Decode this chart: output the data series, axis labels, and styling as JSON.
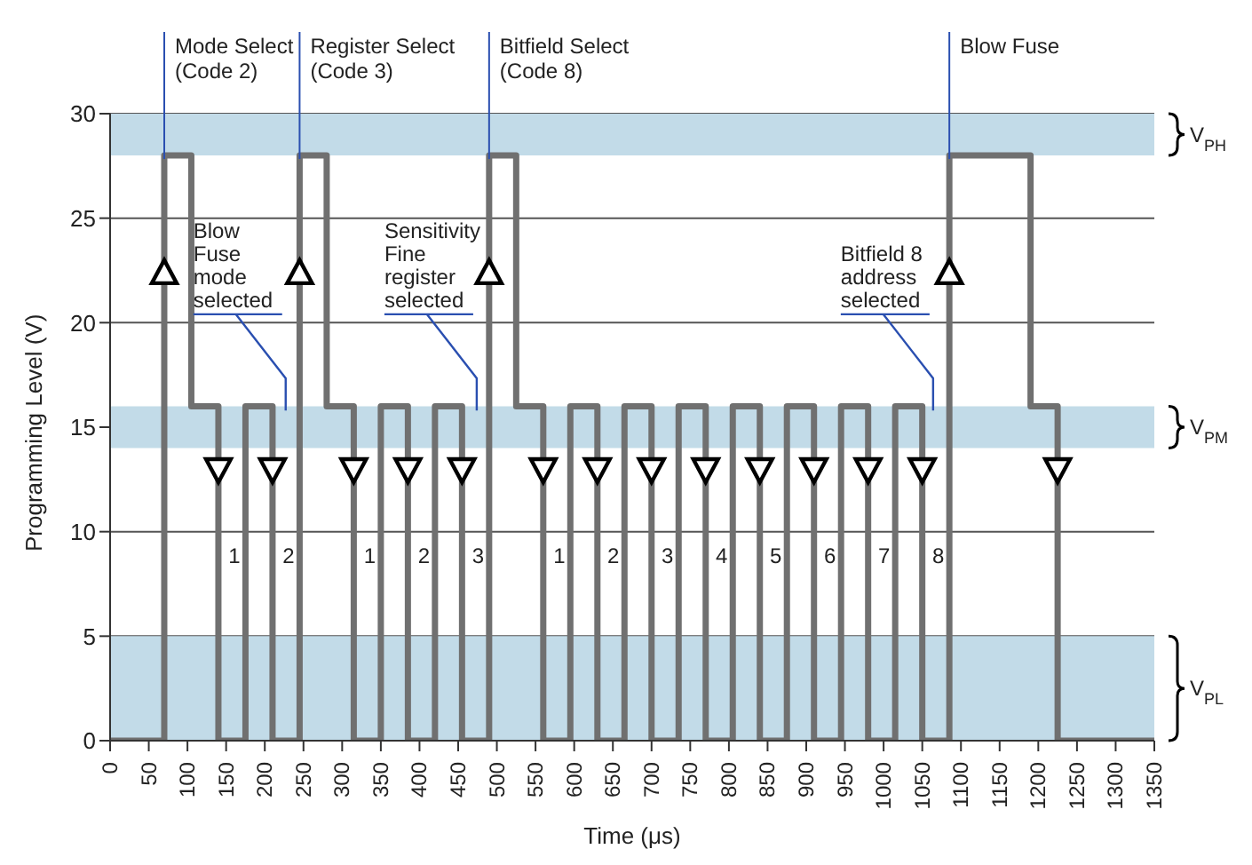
{
  "chart_data": {
    "type": "step",
    "xlabel": "Time (μs)",
    "ylabel": "Programming Level (V)",
    "xlim": [
      0,
      1350
    ],
    "xticks": [
      0,
      50,
      100,
      150,
      200,
      250,
      300,
      350,
      400,
      450,
      500,
      550,
      600,
      650,
      700,
      750,
      800,
      850,
      900,
      950,
      1000,
      1050,
      1100,
      1150,
      1200,
      1250,
      1300,
      1350
    ],
    "ylim": [
      0,
      30
    ],
    "yticks": [
      0,
      5,
      10,
      15,
      20,
      25,
      30
    ],
    "grid": "y",
    "series": [
      {
        "color": "#707070",
        "x": [
          0,
          70,
          105,
          140,
          175,
          210,
          245,
          280,
          315,
          350,
          385,
          420,
          455,
          490,
          525,
          560,
          595,
          630,
          665,
          700,
          735,
          770,
          805,
          840,
          875,
          910,
          945,
          980,
          1015,
          1050,
          1085,
          1190,
          1225,
          1350
        ],
        "values": [
          0,
          28,
          16,
          0,
          16,
          0,
          28,
          16,
          0,
          16,
          0,
          16,
          0,
          28,
          16,
          0,
          16,
          0,
          16,
          0,
          16,
          0,
          16,
          0,
          16,
          0,
          16,
          0,
          16,
          0,
          28,
          16,
          0,
          0
        ]
      }
    ],
    "bands": [
      {
        "axis": "y",
        "from": 28,
        "to": 30,
        "label": "V$_{PH}$",
        "color": "#c2dbe8"
      },
      {
        "axis": "y",
        "from": 14,
        "to": 16,
        "label": "V$_{PM}$",
        "color": "#c2dbe8"
      },
      {
        "axis": "y",
        "from": 0,
        "to": 5,
        "label": "V$_{PL}$",
        "color": "#c2dbe8"
      }
    ],
    "annotations": [
      {
        "text": "Mode Select\n(Code 2)",
        "x": 70,
        "y": 30
      },
      {
        "text": "Register Select\n(Code 3)",
        "x": 245,
        "y": 30
      },
      {
        "text": "Bitfield Select\n(Code 8)",
        "x": 490,
        "y": 30
      },
      {
        "text": "Blow Fuse",
        "x": 1085,
        "y": 30
      },
      {
        "text": "Blow\nFuse\nmode\nselected",
        "x": 227,
        "y": 15.8
      },
      {
        "text": "Sensitivity\nFine\nregister\nselected",
        "x": 474,
        "y": 15.8
      },
      {
        "text": "Bitfield 8\naddress\nselected",
        "x": 1064,
        "y": 15.8
      },
      {
        "text": "1",
        "x": 140,
        "y": 8.5
      },
      {
        "text": "2",
        "x": 210,
        "y": 8.5
      },
      {
        "text": "1",
        "x": 315,
        "y": 8.5
      },
      {
        "text": "2",
        "x": 385,
        "y": 8.5
      },
      {
        "text": "3",
        "x": 455,
        "y": 8.5
      },
      {
        "text": "1",
        "x": 560,
        "y": 8.5
      },
      {
        "text": "2",
        "x": 630,
        "y": 8.5
      },
      {
        "text": "3",
        "x": 700,
        "y": 8.5
      },
      {
        "text": "4",
        "x": 770,
        "y": 8.5
      },
      {
        "text": "5",
        "x": 840,
        "y": 8.5
      },
      {
        "text": "6",
        "x": 910,
        "y": 8.5
      },
      {
        "text": "7",
        "x": 980,
        "y": 8.5
      },
      {
        "text": "8",
        "x": 1050,
        "y": 8.5
      }
    ]
  }
}
